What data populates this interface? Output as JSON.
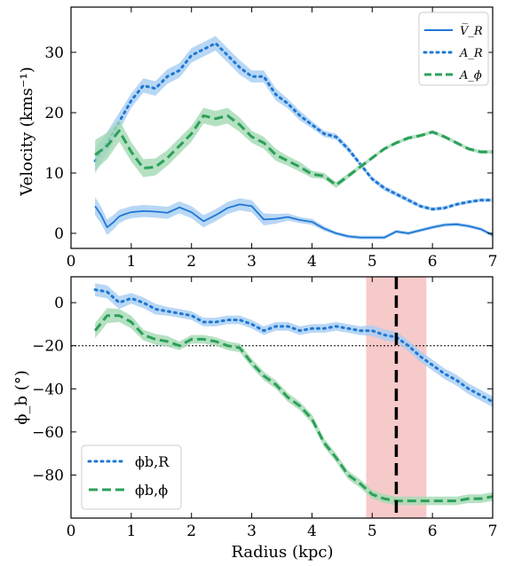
{
  "chart_data": [
    {
      "type": "line",
      "ylabel": "Velocity (kms⁻¹)",
      "xlim": [
        0,
        7
      ],
      "ylim": [
        -2.5,
        37.5
      ],
      "xticks": [
        0,
        1,
        2,
        3,
        4,
        5,
        6,
        7
      ],
      "yticks": [
        0,
        10,
        20,
        30
      ],
      "legend_position": "top-right",
      "colors": {
        "blue": "#1f77d4",
        "blue_band": "#a6cdf3",
        "green": "#2ca05a",
        "green_band": "#a3d9b3"
      },
      "series": [
        {
          "name": "V̅_R",
          "style": "solid",
          "color": "#1f77d4",
          "x": [
            0.4,
            0.5,
            0.6,
            0.7,
            0.8,
            0.9,
            1.0,
            1.2,
            1.4,
            1.6,
            1.8,
            2.0,
            2.2,
            2.4,
            2.6,
            2.8,
            3.0,
            3.2,
            3.4,
            3.6,
            3.8,
            4.0,
            4.2,
            4.4,
            4.6,
            4.8,
            5.0,
            5.2,
            5.4,
            5.6,
            5.8,
            6.0,
            6.2,
            6.4,
            6.6,
            6.8,
            7.0
          ],
          "y": [
            4.5,
            3.0,
            1.0,
            1.8,
            2.8,
            3.2,
            3.5,
            3.7,
            3.6,
            3.4,
            4.3,
            3.5,
            2.0,
            3.0,
            4.2,
            4.8,
            4.5,
            2.3,
            2.4,
            2.7,
            2.2,
            1.9,
            0.8,
            0.0,
            -0.5,
            -0.7,
            -0.7,
            -0.7,
            0.3,
            0.0,
            0.5,
            1.0,
            1.4,
            1.5,
            1.2,
            0.7,
            -0.3
          ],
          "err": [
            1.5,
            1.4,
            1.3,
            1.2,
            1.1,
            1.0,
            1.0,
            1.0,
            1.0,
            1.0,
            1.0,
            1.0,
            1.0,
            1.0,
            1.0,
            1.0,
            1.0,
            1.0,
            0.8,
            0.6,
            0.5,
            0.5,
            0.4,
            0.3,
            0.3,
            0.3,
            0.3,
            0.3,
            0.3,
            0.3,
            0.3,
            0.3,
            0.3,
            0.3,
            0.3,
            0.3,
            0.3
          ]
        },
        {
          "name": "A_R",
          "style": "dotted",
          "color": "#1f77d4",
          "x": [
            0.4,
            0.6,
            0.8,
            1.0,
            1.2,
            1.4,
            1.6,
            1.8,
            2.0,
            2.2,
            2.4,
            2.6,
            2.8,
            3.0,
            3.2,
            3.4,
            3.6,
            3.8,
            4.0,
            4.2,
            4.4,
            4.6,
            4.8,
            5.0,
            5.2,
            5.4,
            5.6,
            5.8,
            6.0,
            6.2,
            6.4,
            6.6,
            6.8,
            7.0
          ],
          "y": [
            12.0,
            15.0,
            18.5,
            22.0,
            24.5,
            24.0,
            26.0,
            27.0,
            29.5,
            30.5,
            31.5,
            29.5,
            27.5,
            26.0,
            26.0,
            23.0,
            21.5,
            19.5,
            18.0,
            16.5,
            16.0,
            14.0,
            11.5,
            9.0,
            7.5,
            6.5,
            5.5,
            4.5,
            4.0,
            4.2,
            4.8,
            5.2,
            5.5,
            5.5
          ],
          "err": [
            2.0,
            1.8,
            1.5,
            1.2,
            1.2,
            1.2,
            1.2,
            1.2,
            1.2,
            1.2,
            1.2,
            1.2,
            1.2,
            1.0,
            1.0,
            1.0,
            0.8,
            0.8,
            0.6,
            0.5,
            0.5,
            0.5,
            0.4,
            0.4,
            0.4,
            0.4,
            0.4,
            0.3,
            0.3,
            0.3,
            0.3,
            0.3,
            0.3,
            0.3
          ]
        },
        {
          "name": "A_ϕ",
          "style": "dashed",
          "color": "#2ca05a",
          "x": [
            0.4,
            0.6,
            0.8,
            1.0,
            1.2,
            1.4,
            1.6,
            1.8,
            2.0,
            2.2,
            2.4,
            2.6,
            2.8,
            3.0,
            3.2,
            3.4,
            3.6,
            3.8,
            4.0,
            4.2,
            4.4,
            4.6,
            4.8,
            5.0,
            5.2,
            5.4,
            5.6,
            5.8,
            6.0,
            6.2,
            6.4,
            6.6,
            6.8,
            7.0
          ],
          "y": [
            13.0,
            14.5,
            17.0,
            13.5,
            10.8,
            11.0,
            12.5,
            14.5,
            16.5,
            19.5,
            19.0,
            19.5,
            18.0,
            16.0,
            15.0,
            13.0,
            12.0,
            11.0,
            9.8,
            9.5,
            8.0,
            9.5,
            11.0,
            12.5,
            14.0,
            15.0,
            15.8,
            16.2,
            16.8,
            16.0,
            15.0,
            14.0,
            13.5,
            13.5
          ],
          "err": [
            2.5,
            2.2,
            1.8,
            1.6,
            1.5,
            1.4,
            1.3,
            1.3,
            1.3,
            1.3,
            1.3,
            1.3,
            1.2,
            1.0,
            1.0,
            1.0,
            0.8,
            0.8,
            0.6,
            0.5,
            0.5,
            0.4,
            0.4,
            0.3,
            0.3,
            0.3,
            0.3,
            0.3,
            0.3,
            0.3,
            0.3,
            0.3,
            0.3,
            0.3
          ]
        }
      ]
    },
    {
      "type": "line",
      "xlabel": "Radius (kpc)",
      "ylabel": "ϕ_b (°)",
      "xlim": [
        0,
        7
      ],
      "ylim": [
        -100,
        12
      ],
      "xticks": [
        0,
        1,
        2,
        3,
        4,
        5,
        6,
        7
      ],
      "yticks": [
        0,
        -20,
        -40,
        -60,
        -80
      ],
      "legend_position": "bottom-left",
      "hline_y": -20,
      "vline_x": 5.4,
      "span_x": [
        4.9,
        5.9
      ],
      "span_color": "#f4b8b8",
      "series": [
        {
          "name": "ϕb,R",
          "style": "dotted",
          "color": "#1f77d4",
          "x": [
            0.4,
            0.6,
            0.8,
            1.0,
            1.2,
            1.4,
            1.6,
            1.8,
            2.0,
            2.2,
            2.4,
            2.6,
            2.8,
            3.0,
            3.2,
            3.4,
            3.6,
            3.8,
            4.0,
            4.2,
            4.4,
            4.6,
            4.8,
            5.0,
            5.2,
            5.4,
            5.6,
            5.8,
            6.0,
            6.2,
            6.4,
            6.6,
            6.8,
            7.0
          ],
          "y": [
            6.0,
            5.0,
            0.0,
            2.0,
            0.0,
            -3.0,
            -4.0,
            -5.0,
            -6.0,
            -9.0,
            -9.0,
            -8.0,
            -8.0,
            -10.0,
            -13.0,
            -11.0,
            -11.0,
            -13.0,
            -12.0,
            -12.0,
            -11.0,
            -12.0,
            -13.0,
            -13.0,
            -15.0,
            -16.0,
            -20.0,
            -25.0,
            -29.0,
            -33.0,
            -36.0,
            -40.0,
            -43.0,
            -46.0
          ],
          "err": [
            3.0,
            3.0,
            3.0,
            2.5,
            2.5,
            2.5,
            2.0,
            2.0,
            2.0,
            2.0,
            2.0,
            2.0,
            2.0,
            2.0,
            2.0,
            2.0,
            2.0,
            2.0,
            2.0,
            2.0,
            2.0,
            2.0,
            2.0,
            2.5,
            2.5,
            2.5,
            2.5,
            2.5,
            2.5,
            2.5,
            2.5,
            2.5,
            2.5,
            2.5
          ]
        },
        {
          "name": "ϕb,ϕ",
          "style": "dashed",
          "color": "#2ca05a",
          "x": [
            0.4,
            0.6,
            0.8,
            1.0,
            1.2,
            1.4,
            1.6,
            1.8,
            2.0,
            2.2,
            2.4,
            2.6,
            2.8,
            3.0,
            3.2,
            3.4,
            3.6,
            3.8,
            4.0,
            4.2,
            4.4,
            4.6,
            4.8,
            5.0,
            5.2,
            5.4,
            5.6,
            5.8,
            6.0,
            6.2,
            6.4,
            6.6,
            6.8,
            7.0
          ],
          "y": [
            -13.0,
            -6.0,
            -6.0,
            -9.0,
            -15.0,
            -17.0,
            -18.0,
            -20.0,
            -17.0,
            -17.0,
            -18.0,
            -20.0,
            -21.0,
            -28.0,
            -34.0,
            -38.0,
            -44.0,
            -48.0,
            -54.0,
            -65.0,
            -72.0,
            -80.0,
            -84.0,
            -89.0,
            -91.0,
            -92.0,
            -92.0,
            -92.0,
            -92.0,
            -92.0,
            -92.0,
            -91.0,
            -91.0,
            -90.0
          ],
          "err": [
            3.5,
            3.5,
            3.0,
            3.0,
            2.5,
            2.5,
            2.5,
            2.0,
            2.0,
            2.0,
            2.0,
            2.0,
            2.0,
            2.0,
            2.0,
            2.0,
            2.0,
            2.0,
            2.0,
            2.0,
            2.0,
            2.0,
            2.0,
            2.0,
            2.0,
            2.0,
            2.0,
            2.0,
            2.0,
            2.0,
            2.0,
            2.0,
            2.0,
            2.0
          ]
        }
      ]
    }
  ]
}
